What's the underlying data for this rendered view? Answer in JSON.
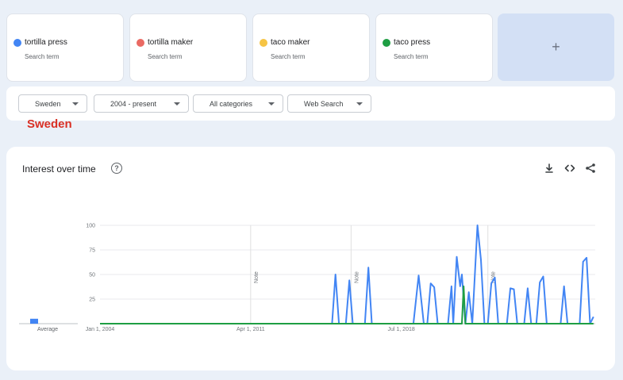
{
  "terms": [
    {
      "name": "tortilla press",
      "sub": "Search term",
      "color": "#4285f4"
    },
    {
      "name": "tortilla maker",
      "sub": "Search term",
      "color": "#ea6a63"
    },
    {
      "name": "taco maker",
      "sub": "Search term",
      "color": "#f6c444"
    },
    {
      "name": "taco press",
      "sub": "Search term",
      "color": "#1e9e43"
    }
  ],
  "add_label": "+",
  "filters": {
    "region": "Sweden",
    "time": "2004 - present",
    "category": "All categories",
    "search_type": "Web Search"
  },
  "region_heading": "Sweden",
  "panel": {
    "title": "Interest over time",
    "help_icon": "help-circle-icon",
    "download_icon": "download-icon",
    "embed_icon": "code-icon",
    "share_icon": "share-icon"
  },
  "chart_data": {
    "type": "line",
    "title": "Interest over time",
    "y_ticks": [
      "100",
      "75",
      "50",
      "25"
    ],
    "ylim": [
      0,
      100
    ],
    "x_tick_labels": [
      "Jan 1, 2004",
      "Apr 1, 2011",
      "Jul 1, 2018"
    ],
    "note_label": "Note",
    "average_label": "Average",
    "averages": {
      "tortilla press": 5,
      "tortilla maker": 0,
      "taco maker": 0,
      "taco press": 0
    },
    "grid": true,
    "series": [
      {
        "name": "tortilla press",
        "color": "#4285f4",
        "points": [
          [
            "2004-01",
            0
          ],
          [
            "2015-03",
            0
          ],
          [
            "2015-05",
            50
          ],
          [
            "2015-07",
            0
          ],
          [
            "2015-11",
            0
          ],
          [
            "2016-01",
            44
          ],
          [
            "2016-03",
            0
          ],
          [
            "2016-10",
            0
          ],
          [
            "2016-12",
            57
          ],
          [
            "2017-02",
            0
          ],
          [
            "2019-02",
            0
          ],
          [
            "2019-05",
            49
          ],
          [
            "2019-08",
            0
          ],
          [
            "2019-10",
            0
          ],
          [
            "2019-12",
            41
          ],
          [
            "2020-02",
            37
          ],
          [
            "2020-04",
            0
          ],
          [
            "2020-10",
            0
          ],
          [
            "2020-12",
            38
          ],
          [
            "2021-01",
            0
          ],
          [
            "2021-03",
            68
          ],
          [
            "2021-05",
            38
          ],
          [
            "2021-06",
            50
          ],
          [
            "2021-08",
            0
          ],
          [
            "2021-10",
            32
          ],
          [
            "2021-12",
            0
          ],
          [
            "2022-03",
            100
          ],
          [
            "2022-05",
            65
          ],
          [
            "2022-07",
            0
          ],
          [
            "2022-09",
            0
          ],
          [
            "2022-11",
            41
          ],
          [
            "2023-01",
            47
          ],
          [
            "2023-03",
            0
          ],
          [
            "2023-08",
            0
          ],
          [
            "2023-10",
            36
          ],
          [
            "2023-12",
            35
          ],
          [
            "2024-02",
            0
          ],
          [
            "2024-06",
            0
          ],
          [
            "2024-08",
            36
          ],
          [
            "2024-10",
            0
          ],
          [
            "2025-01",
            0
          ],
          [
            "2025-03",
            42
          ],
          [
            "2025-05",
            48
          ],
          [
            "2025-07",
            0
          ],
          [
            "2026-03",
            0
          ],
          [
            "2026-05",
            38
          ],
          [
            "2026-07",
            0
          ],
          [
            "2027-02",
            0
          ],
          [
            "2027-04",
            63
          ],
          [
            "2027-06",
            67
          ],
          [
            "2027-08",
            0
          ],
          [
            "2027-10",
            7
          ]
        ]
      },
      {
        "name": "tortilla maker",
        "color": "#ea6a63",
        "points": []
      },
      {
        "name": "taco maker",
        "color": "#f6c444",
        "points": []
      },
      {
        "name": "taco press",
        "color": "#1e9e43",
        "points": [
          [
            "2004-01",
            0
          ],
          [
            "2021-06",
            0
          ],
          [
            "2021-07",
            38
          ],
          [
            "2021-08",
            0
          ],
          [
            "2027-10",
            0
          ]
        ]
      }
    ]
  }
}
